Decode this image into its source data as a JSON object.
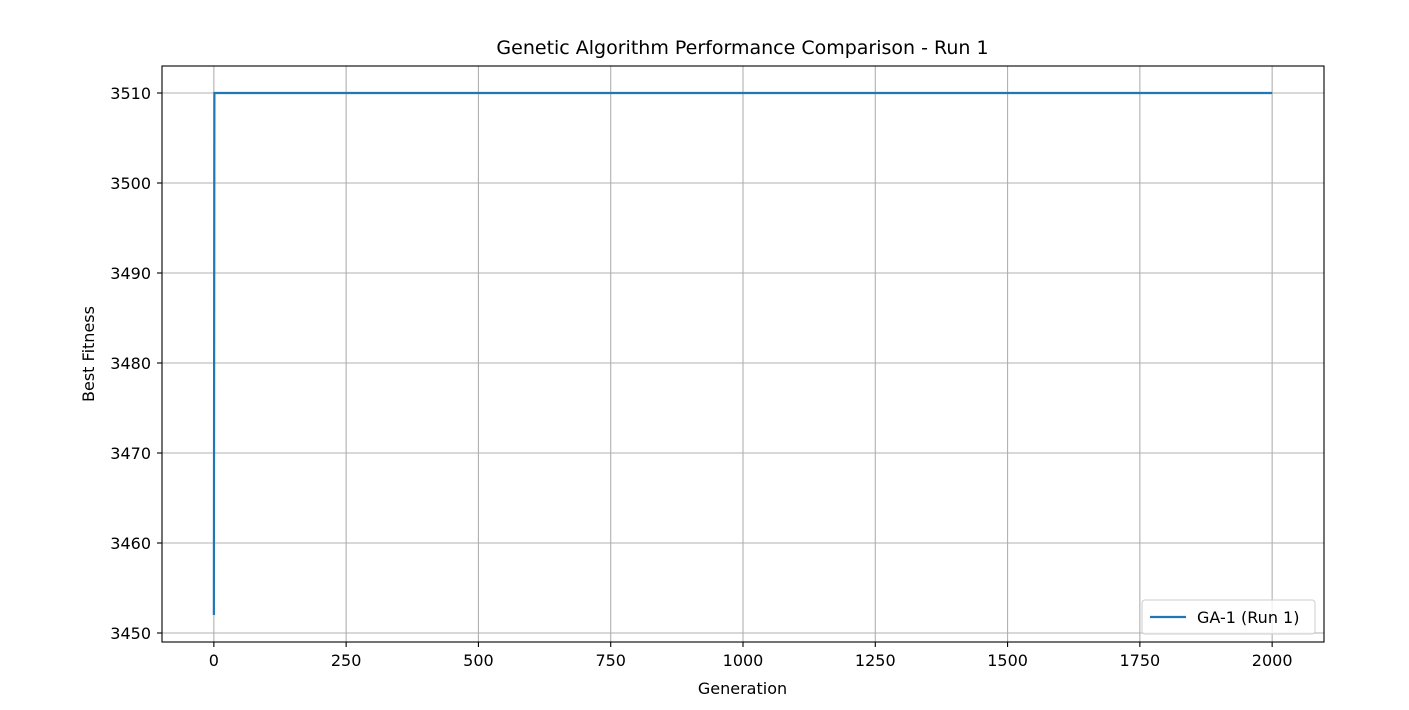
{
  "chart_data": {
    "type": "line",
    "title": "Genetic Algorithm Performance Comparison - Run 1",
    "xlabel": "Generation",
    "ylabel": "Best Fitness",
    "xlim": [
      -98,
      2098
    ],
    "ylim": [
      3449,
      3513
    ],
    "x_ticks": [
      0,
      250,
      500,
      750,
      1000,
      1250,
      1500,
      1750,
      2000
    ],
    "x_tick_labels": [
      "0",
      "250",
      "500",
      "750",
      "1000",
      "1250",
      "1500",
      "1750",
      "2000"
    ],
    "y_ticks": [
      3450,
      3460,
      3470,
      3480,
      3490,
      3500,
      3510
    ],
    "y_tick_labels": [
      "3450",
      "3460",
      "3470",
      "3480",
      "3490",
      "3500",
      "3510"
    ],
    "grid": true,
    "legend_position": "lower-right",
    "series": [
      {
        "name": "GA-1 (Run 1)",
        "color": "#1f77b4",
        "x": [
          0,
          1,
          2000
        ],
        "y": [
          3452,
          3510,
          3510
        ]
      }
    ]
  }
}
